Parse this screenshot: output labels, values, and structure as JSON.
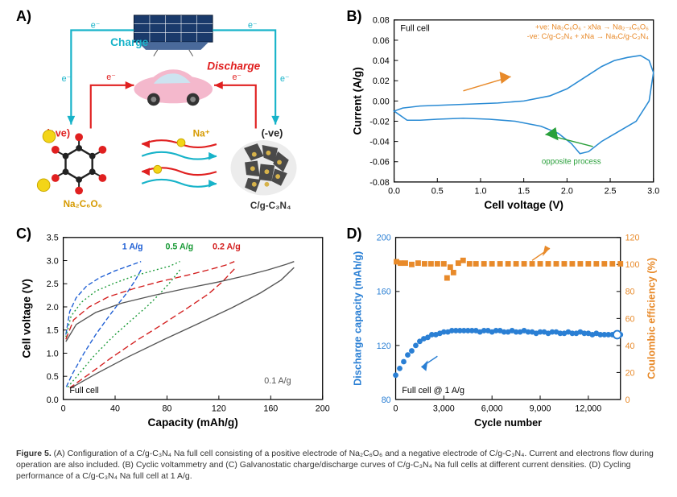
{
  "labels": {
    "A": "A)",
    "B": "B)",
    "C": "C)",
    "D": "D)"
  },
  "panelA": {
    "charge_label": "Charge",
    "discharge_label": "Discharge",
    "pos_label": "(+ve)",
    "neg_label": "(-ve)",
    "na_ion": "Na⁺",
    "electron": "e⁻",
    "cathode_formula": "Na₂C₆O₆",
    "anode_formula": "C/g-C₃N₄",
    "colors": {
      "charge_arrow": "#17b3c9",
      "discharge_arrow": "#e02020",
      "na_arrow1": "#e02020",
      "na_arrow2": "#17b3c9",
      "pos_text": "#e02020",
      "neg_text": "#222",
      "cathode_text": "#d69a00",
      "anode_text": "#333",
      "molecule_ring": "#222",
      "oxygen": "#e02020",
      "sodium": "#f3d518",
      "anode_gray": "#4a4a4a",
      "anode_dots": "#d6b24a"
    }
  },
  "panelB": {
    "type": "line",
    "title_inset": "Full cell",
    "legend1": "+ve: Na₂C₆O₆ - xNa → Na₂₋ₓC₆O₆",
    "legend2": "-ve: C/g-C₃N₄ + xNa → NaₓC/g-C₃N₄",
    "note_text": "opposite process",
    "xlabel": "Cell voltage (V)",
    "ylabel": "Current (A/g)",
    "xlim": [
      0.0,
      3.0
    ],
    "xtick_step": 0.5,
    "ylim": [
      -0.08,
      0.08
    ],
    "ytick_step": 0.02,
    "curve": [
      [
        0.0,
        -0.01
      ],
      [
        0.15,
        -0.019
      ],
      [
        0.3,
        -0.019
      ],
      [
        0.5,
        -0.018
      ],
      [
        0.8,
        -0.017
      ],
      [
        1.1,
        -0.018
      ],
      [
        1.4,
        -0.02
      ],
      [
        1.7,
        -0.025
      ],
      [
        1.9,
        -0.032
      ],
      [
        2.05,
        -0.042
      ],
      [
        2.15,
        -0.052
      ],
      [
        2.25,
        -0.05
      ],
      [
        2.4,
        -0.04
      ],
      [
        2.6,
        -0.03
      ],
      [
        2.8,
        -0.02
      ],
      [
        2.95,
        0.0
      ],
      [
        3.0,
        0.028
      ],
      [
        2.95,
        0.04
      ],
      [
        2.85,
        0.045
      ],
      [
        2.7,
        0.043
      ],
      [
        2.55,
        0.04
      ],
      [
        2.4,
        0.034
      ],
      [
        2.2,
        0.023
      ],
      [
        2.0,
        0.012
      ],
      [
        1.8,
        0.005
      ],
      [
        1.5,
        0.0
      ],
      [
        1.2,
        -0.002
      ],
      [
        0.9,
        -0.003
      ],
      [
        0.6,
        -0.004
      ],
      [
        0.3,
        -0.005
      ],
      [
        0.1,
        -0.007
      ],
      [
        0.0,
        -0.01
      ]
    ],
    "colors": {
      "curve": "#2a8bd4",
      "legend": "#e88a2a",
      "note": "#2aa03b",
      "axis": "#000",
      "grid": "none",
      "arrow_up": "#e88a2a",
      "arrow_down": "#2aa03b"
    },
    "line_width": 1.6,
    "label_fontsize": 14,
    "tick_fontsize": 11
  },
  "panelC": {
    "type": "line",
    "title_inset": "Full cell",
    "xlabel": "Capacity (mAh/g)",
    "ylabel": "Cell voltage (V)",
    "xlim": [
      0,
      200
    ],
    "xtick_step": 40,
    "ylim": [
      0.0,
      3.5
    ],
    "ytick_step": 0.5,
    "series": [
      {
        "label": "1 A/g",
        "color": "#1f5fd4",
        "dash": "6 3",
        "width": 1.4,
        "charge": [
          [
            2,
            1.4
          ],
          [
            5,
            1.9
          ],
          [
            10,
            2.2
          ],
          [
            18,
            2.45
          ],
          [
            28,
            2.63
          ],
          [
            40,
            2.78
          ],
          [
            52,
            2.9
          ],
          [
            60,
            2.98
          ]
        ],
        "discharge": [
          [
            60,
            2.8
          ],
          [
            55,
            2.55
          ],
          [
            49,
            2.3
          ],
          [
            42,
            2.05
          ],
          [
            34,
            1.75
          ],
          [
            25,
            1.4
          ],
          [
            16,
            1.0
          ],
          [
            7,
            0.55
          ],
          [
            2,
            0.25
          ]
        ]
      },
      {
        "label": "0.5 A/g",
        "color": "#1a9a37",
        "dash": "2 3",
        "width": 1.4,
        "charge": [
          [
            2,
            1.35
          ],
          [
            6,
            1.8
          ],
          [
            14,
            2.1
          ],
          [
            25,
            2.34
          ],
          [
            40,
            2.52
          ],
          [
            55,
            2.67
          ],
          [
            70,
            2.79
          ],
          [
            82,
            2.88
          ],
          [
            90,
            2.98
          ]
        ],
        "discharge": [
          [
            90,
            2.8
          ],
          [
            83,
            2.55
          ],
          [
            75,
            2.3
          ],
          [
            65,
            2.02
          ],
          [
            52,
            1.7
          ],
          [
            38,
            1.35
          ],
          [
            24,
            0.95
          ],
          [
            12,
            0.55
          ],
          [
            3,
            0.25
          ]
        ]
      },
      {
        "label": "0.2 A/g",
        "color": "#d31f1f",
        "dash": "8 4",
        "width": 1.4,
        "charge": [
          [
            2,
            1.3
          ],
          [
            8,
            1.72
          ],
          [
            20,
            2.0
          ],
          [
            35,
            2.22
          ],
          [
            55,
            2.4
          ],
          [
            75,
            2.55
          ],
          [
            95,
            2.68
          ],
          [
            112,
            2.8
          ],
          [
            125,
            2.9
          ],
          [
            132,
            2.98
          ]
        ],
        "discharge": [
          [
            132,
            2.82
          ],
          [
            123,
            2.55
          ],
          [
            112,
            2.28
          ],
          [
            96,
            1.98
          ],
          [
            78,
            1.65
          ],
          [
            58,
            1.3
          ],
          [
            38,
            0.92
          ],
          [
            20,
            0.55
          ],
          [
            5,
            0.25
          ]
        ]
      },
      {
        "label": "0.1 A/g",
        "color": "#555555",
        "dash": "none",
        "width": 1.4,
        "charge": [
          [
            2,
            1.25
          ],
          [
            10,
            1.62
          ],
          [
            25,
            1.88
          ],
          [
            45,
            2.08
          ],
          [
            70,
            2.25
          ],
          [
            95,
            2.4
          ],
          [
            120,
            2.54
          ],
          [
            140,
            2.67
          ],
          [
            158,
            2.8
          ],
          [
            172,
            2.92
          ],
          [
            178,
            2.98
          ]
        ],
        "discharge": [
          [
            178,
            2.85
          ],
          [
            168,
            2.58
          ],
          [
            152,
            2.3
          ],
          [
            130,
            1.98
          ],
          [
            105,
            1.65
          ],
          [
            78,
            1.3
          ],
          [
            50,
            0.92
          ],
          [
            25,
            0.55
          ],
          [
            6,
            0.25
          ]
        ]
      }
    ],
    "label_fontsize": 14,
    "tick_fontsize": 11,
    "legend_fontsize": 11
  },
  "panelD": {
    "type": "dual-axis-scatter",
    "title_inset": "Full cell @ 1 A/g",
    "xlabel": "Cycle number",
    "ylabel_left": "Discharge capacity (mAh/g)",
    "ylabel_right": "Coulombic efficiency (%)",
    "xlim": [
      0,
      14000
    ],
    "xticks": [
      0,
      3000,
      6000,
      9000,
      12000
    ],
    "ylim_left": [
      80,
      200
    ],
    "ytick_left_step": 40,
    "ylim_right": [
      0,
      120
    ],
    "ytick_right_step": 20,
    "capacity_color": "#2a7fd4",
    "efficiency_color": "#e88a2a",
    "marker_size": 3.5,
    "capacity_points_x_step": 250,
    "capacity_yvals": [
      98,
      103,
      108,
      113,
      116,
      120,
      123,
      125,
      126,
      128,
      128,
      129,
      130,
      130,
      131,
      131,
      131,
      131,
      131,
      131,
      131,
      130,
      131,
      131,
      130,
      131,
      131,
      130,
      130,
      131,
      130,
      130,
      131,
      130,
      130,
      129,
      130,
      130,
      129,
      130,
      130,
      129,
      129,
      130,
      129,
      129,
      130,
      129,
      129,
      128,
      129,
      128,
      128,
      128,
      128,
      128,
      128
    ],
    "efficiency_points": [
      [
        50,
        102
      ],
      [
        300,
        101
      ],
      [
        600,
        101
      ],
      [
        1000,
        100
      ],
      [
        1400,
        101
      ],
      [
        1800,
        100.5
      ],
      [
        2200,
        100.5
      ],
      [
        2600,
        100.5
      ],
      [
        3000,
        100.5
      ],
      [
        3200,
        90
      ],
      [
        3400,
        98
      ],
      [
        3600,
        94
      ],
      [
        3900,
        101
      ],
      [
        4200,
        103
      ],
      [
        4600,
        100.5
      ],
      [
        5000,
        100.5
      ],
      [
        5500,
        100.5
      ],
      [
        6000,
        100.5
      ],
      [
        6500,
        100.5
      ],
      [
        7000,
        100.5
      ],
      [
        7500,
        100.5
      ],
      [
        8000,
        100.5
      ],
      [
        8500,
        100.5
      ],
      [
        9000,
        100.5
      ],
      [
        9500,
        100.5
      ],
      [
        10000,
        100.5
      ],
      [
        10500,
        100.5
      ],
      [
        11000,
        100.5
      ],
      [
        11500,
        100.5
      ],
      [
        12000,
        100.5
      ],
      [
        12500,
        100.5
      ],
      [
        13000,
        100.5
      ],
      [
        13500,
        100.5
      ],
      [
        14000,
        100.5
      ]
    ],
    "label_fontsize": 13,
    "tick_fontsize": 11
  },
  "caption": {
    "lead": "Figure 5.",
    "text": " (A) Configuration of a C/g-C₃N₄ Na full cell consisting of a positive electrode of Na₂C₆O₆ and a negative electrode of C/g-C₃N₄. Current and electrons flow during operation are also included. (B) Cyclic voltammetry and (C) Galvanostatic charge/discharge curves of C/g-C₃N₄ Na full cells at different current densities. (D) Cycling performance of a C/g-C₃N₄ Na full cell at 1 A/g."
  }
}
